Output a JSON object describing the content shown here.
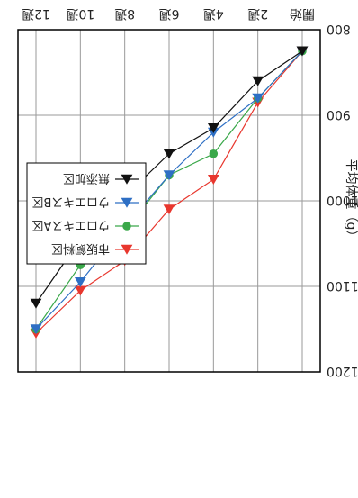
{
  "chart_data": {
    "type": "line",
    "ylabel": "平均体重（g）",
    "ylim": [
      800,
      1200
    ],
    "yticks": [
      800,
      900,
      1000,
      1100,
      1200
    ],
    "categories": [
      "開始",
      "2週",
      "4週",
      "6週",
      "8週",
      "10週",
      "12週"
    ],
    "grid": true,
    "legend_position": "bottom-left",
    "orientation": "rotated 180°",
    "series": [
      {
        "name": "市販飼料区",
        "color": "#e8372e",
        "marker": "triangle-up",
        "x": [
          0,
          1,
          2,
          3,
          4,
          5,
          6
        ],
        "values": [
          825,
          885,
          975,
          1010,
          1070,
          1105,
          1155
        ]
      },
      {
        "name": "ウロエキスA区",
        "color": "#3aa84a",
        "marker": "circle",
        "x": [
          0,
          1,
          2,
          3,
          4,
          5,
          6
        ],
        "values": [
          825,
          880,
          945,
          970,
          1035,
          1075,
          1150
        ]
      },
      {
        "name": "ウロエキスB区",
        "color": "#2e6fc4",
        "marker": "triangle-up",
        "x": [
          0,
          1,
          2,
          3,
          4,
          5,
          6
        ],
        "values": [
          825,
          880,
          920,
          970,
          1030,
          1095,
          1150
        ]
      },
      {
        "name": "無添加区",
        "color": "#111111",
        "marker": "triangle-up",
        "x": [
          0,
          1,
          2,
          3,
          4,
          4.5,
          5,
          6
        ],
        "values": [
          825,
          860,
          915,
          945,
          995,
          1000,
          1045,
          1120
        ]
      }
    ]
  }
}
